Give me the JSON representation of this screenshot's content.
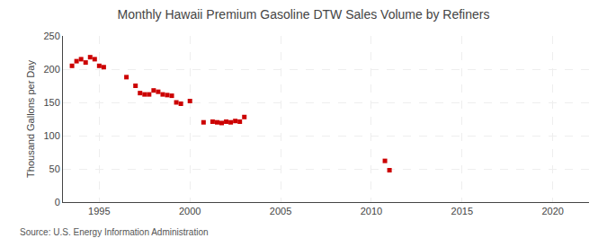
{
  "chart_data": {
    "type": "scatter",
    "title": "Monthly Hawaii Premium Gasoline DTW Sales Volume by Refiners",
    "ylabel": "Thousand Gallons per Day",
    "source": "Source: U.S. Energy Information Administration",
    "color": "#cc0000",
    "marker": "square",
    "grid": true,
    "xlim": [
      1993.0,
      2022.0
    ],
    "ylim": [
      0,
      250
    ],
    "xticks": [
      1995,
      2000,
      2005,
      2010,
      2015,
      2020
    ],
    "yticks": [
      0,
      50,
      100,
      150,
      200,
      250
    ],
    "x": [
      1993.5,
      1993.75,
      1994.0,
      1994.25,
      1994.5,
      1994.75,
      1995.0,
      1995.25,
      1996.5,
      1997.0,
      1997.25,
      1997.5,
      1997.75,
      1998.0,
      1998.25,
      1998.5,
      1998.75,
      1999.0,
      1999.25,
      1999.5,
      2000.0,
      2000.75,
      2001.25,
      2001.5,
      2001.75,
      2002.0,
      2002.25,
      2002.5,
      2002.75,
      2003.0,
      2010.75,
      2011.0
    ],
    "values": [
      205,
      212,
      215,
      210,
      218,
      215,
      205,
      203,
      188,
      175,
      164,
      162,
      162,
      168,
      166,
      162,
      161,
      160,
      150,
      148,
      152,
      120,
      121,
      120,
      119,
      121,
      120,
      122,
      121,
      128,
      62,
      48
    ]
  }
}
